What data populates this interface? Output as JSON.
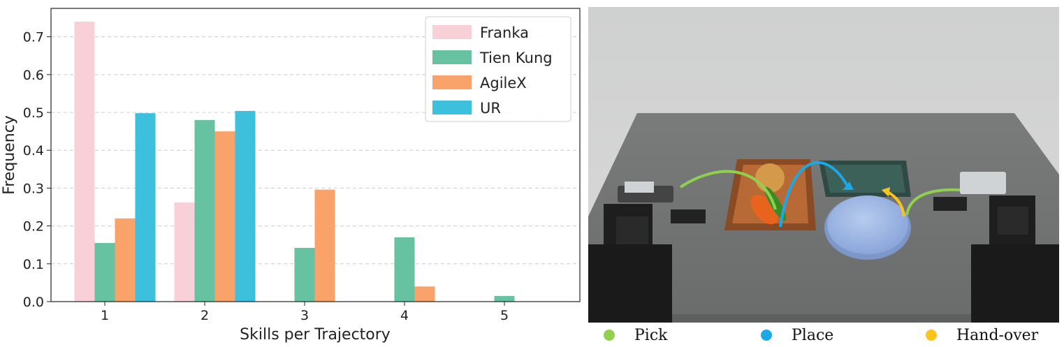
{
  "chart_data": {
    "type": "bar",
    "xlabel": "Skills per Trajectory",
    "ylabel": "Frequency",
    "categories": [
      "1",
      "2",
      "3",
      "4",
      "5"
    ],
    "ylim": [
      0,
      0.775
    ],
    "yticks": [
      "0.0",
      "0.1",
      "0.2",
      "0.3",
      "0.4",
      "0.5",
      "0.6",
      "0.7"
    ],
    "grid": "horizontal dashed",
    "legend_position": "top-right",
    "series": [
      {
        "name": "Franka",
        "color": "#f9d0d8",
        "values": [
          0.74,
          0.262,
          0,
          0,
          0
        ]
      },
      {
        "name": "Tien Kung",
        "color": "#66c2a0",
        "values": [
          0.155,
          0.48,
          0.142,
          0.17,
          0.015
        ]
      },
      {
        "name": "AgileX",
        "color": "#f9a36a",
        "values": [
          0.22,
          0.45,
          0.296,
          0.04,
          0
        ]
      },
      {
        "name": "UR",
        "color": "#3cc0dc",
        "values": [
          0.498,
          0.504,
          0,
          0,
          0
        ]
      }
    ]
  },
  "photo_legend": {
    "pick": {
      "label": "Pick",
      "color": "#8fd14f"
    },
    "place": {
      "label": "Place",
      "color": "#1ca7e6"
    },
    "handover": {
      "label": "Hand-over",
      "color": "#fbc31d"
    }
  }
}
